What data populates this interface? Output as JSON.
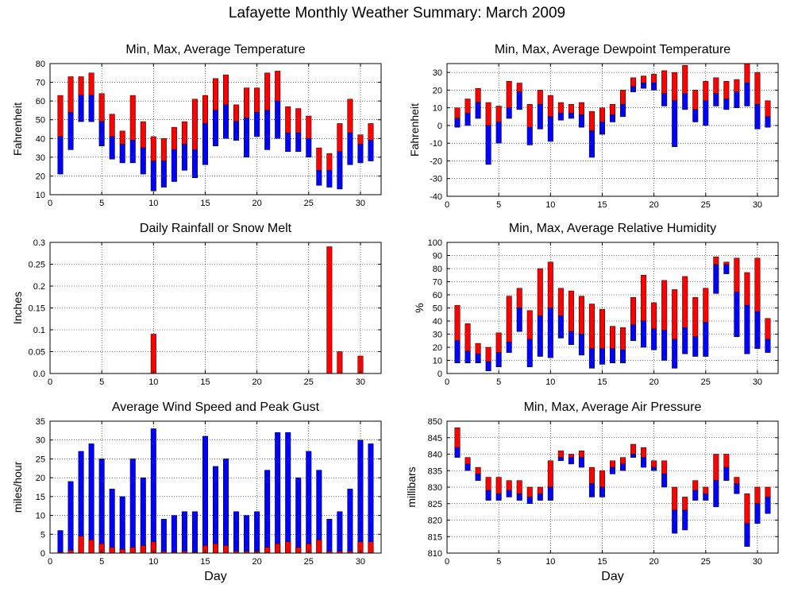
{
  "page": {
    "title": "Lafayette Monthly Weather Summary: March 2009"
  },
  "colors": {
    "max_bar": "#ff0000",
    "min_bar": "#0000ff",
    "grid": "#000000"
  },
  "chart_data": [
    {
      "id": "temperature",
      "type": "bar",
      "bar_style": "floating-range",
      "title": "Min, Max, Average Temperature",
      "xlabel": "",
      "ylabel": "Fahrenheit",
      "xlim": [
        0,
        32
      ],
      "ylim": [
        10,
        80
      ],
      "xticks": [
        0,
        5,
        10,
        15,
        20,
        25,
        30
      ],
      "yticks": [
        10,
        20,
        30,
        40,
        50,
        60,
        70,
        80
      ],
      "grid": true,
      "x": [
        1,
        2,
        3,
        4,
        5,
        6,
        7,
        8,
        9,
        10,
        11,
        12,
        13,
        14,
        15,
        16,
        17,
        18,
        19,
        20,
        21,
        22,
        23,
        24,
        25,
        26,
        27,
        28,
        29,
        30,
        31
      ],
      "min": [
        21,
        34,
        49,
        49,
        36,
        29,
        27,
        27,
        21,
        12,
        14,
        17,
        23,
        19,
        26,
        36,
        40,
        39,
        30,
        41,
        34,
        40,
        33,
        33,
        30,
        15,
        14,
        13,
        26,
        27,
        28
      ],
      "avg": [
        41,
        54,
        63,
        63,
        49,
        41,
        37,
        39,
        35,
        28,
        28,
        34,
        37,
        34,
        48,
        55,
        58,
        49,
        51,
        54,
        55,
        60,
        43,
        43,
        40,
        23,
        23,
        33,
        43,
        37,
        39
      ],
      "max": [
        63,
        73,
        73,
        75,
        64,
        53,
        44,
        63,
        49,
        41,
        40,
        46,
        49,
        61,
        63,
        72,
        74,
        58,
        67,
        67,
        75,
        76,
        57,
        56,
        52,
        35,
        32,
        48,
        61,
        42,
        48
      ]
    },
    {
      "id": "dewpoint",
      "type": "bar",
      "bar_style": "floating-range",
      "title": "Min, Max, Average Dewpoint Temperature",
      "xlabel": "",
      "ylabel": "Fahrenheit",
      "xlim": [
        0,
        32
      ],
      "ylim": [
        -40,
        35
      ],
      "xticks": [
        0,
        5,
        10,
        15,
        20,
        25,
        30
      ],
      "yticks": [
        -40,
        -30,
        -20,
        -10,
        0,
        10,
        20,
        30
      ],
      "grid": true,
      "x": [
        1,
        2,
        3,
        4,
        5,
        6,
        7,
        8,
        9,
        10,
        11,
        12,
        13,
        14,
        15,
        16,
        17,
        18,
        19,
        20,
        21,
        22,
        23,
        24,
        25,
        26,
        27,
        28,
        29,
        30,
        31
      ],
      "min": [
        -1,
        0,
        4,
        -22,
        -10,
        4,
        9,
        -11,
        -2,
        -9,
        3,
        4,
        -1,
        -18,
        -5,
        2,
        5,
        19,
        21,
        20,
        11,
        -12,
        9,
        2,
        0,
        11,
        9,
        10,
        11,
        -2,
        -1
      ],
      "avg": [
        4,
        7,
        13,
        0,
        2,
        10,
        19,
        -1,
        12,
        5,
        7,
        7,
        6,
        -3,
        2,
        6,
        12,
        22,
        24,
        24,
        18,
        14,
        18,
        9,
        14,
        18,
        15,
        19,
        24,
        12,
        5
      ],
      "max": [
        10,
        15,
        21,
        13,
        11,
        25,
        24,
        12,
        20,
        17,
        13,
        12,
        13,
        8,
        10,
        12,
        20,
        27,
        28,
        29,
        31,
        30,
        34,
        20,
        25,
        27,
        25,
        26,
        35,
        30,
        14
      ]
    },
    {
      "id": "rainfall",
      "type": "bar",
      "bar_style": "single",
      "title": "Daily Rainfall or Snow Melt",
      "xlabel": "",
      "ylabel": "Inches",
      "xlim": [
        0,
        32
      ],
      "ylim": [
        0,
        0.3
      ],
      "xticks": [
        0,
        5,
        10,
        15,
        20,
        25,
        30
      ],
      "yticks": [
        0.0,
        0.05,
        0.1,
        0.15,
        0.2,
        0.25,
        0.3
      ],
      "ytick_labels": [
        "0.0",
        "0.05",
        "0.1",
        "0.15",
        "0.2",
        "0.25",
        "0.3"
      ],
      "grid": true,
      "x": [
        1,
        2,
        3,
        4,
        5,
        6,
        7,
        8,
        9,
        10,
        11,
        12,
        13,
        14,
        15,
        16,
        17,
        18,
        19,
        20,
        21,
        22,
        23,
        24,
        25,
        26,
        27,
        28,
        29,
        30,
        31
      ],
      "values": [
        0,
        0,
        0,
        0,
        0,
        0,
        0,
        0,
        0,
        0.09,
        0,
        0,
        0,
        0,
        0,
        0,
        0,
        0,
        0,
        0,
        0,
        0,
        0,
        0,
        0,
        0,
        0.29,
        0.05,
        0,
        0.04,
        0
      ]
    },
    {
      "id": "humidity",
      "type": "bar",
      "bar_style": "floating-range",
      "title": "Min, Max, Average Relative Humidity",
      "xlabel": "",
      "ylabel": "%",
      "xlim": [
        0,
        32
      ],
      "ylim": [
        0,
        100
      ],
      "xticks": [
        0,
        5,
        10,
        15,
        20,
        25,
        30
      ],
      "yticks": [
        0,
        10,
        20,
        30,
        40,
        50,
        60,
        70,
        80,
        90,
        100
      ],
      "grid": true,
      "x": [
        1,
        2,
        3,
        4,
        5,
        6,
        7,
        8,
        9,
        10,
        11,
        12,
        13,
        14,
        15,
        16,
        17,
        18,
        19,
        20,
        21,
        22,
        23,
        24,
        25,
        26,
        27,
        28,
        29,
        30,
        31
      ],
      "min": [
        8,
        8,
        8,
        2,
        5,
        16,
        32,
        5,
        13,
        12,
        27,
        22,
        14,
        4,
        7,
        8,
        8,
        25,
        20,
        18,
        10,
        4,
        15,
        13,
        13,
        61,
        76,
        28,
        15,
        19,
        16
      ],
      "avg": [
        25,
        17,
        15,
        9,
        16,
        24,
        50,
        26,
        44,
        50,
        44,
        32,
        30,
        19,
        19,
        19,
        18,
        37,
        40,
        34,
        33,
        26,
        35,
        28,
        39,
        83,
        83,
        62,
        52,
        47,
        26
      ],
      "max": [
        52,
        38,
        23,
        20,
        31,
        59,
        65,
        48,
        80,
        85,
        65,
        63,
        59,
        53,
        49,
        36,
        35,
        58,
        75,
        54,
        71,
        64,
        74,
        58,
        65,
        89,
        85,
        88,
        77,
        88,
        42
      ]
    },
    {
      "id": "wind",
      "type": "bar",
      "bar_style": "overlay",
      "title": "Average Wind Speed and Peak Gust",
      "xlabel": "Day",
      "ylabel": "miles/hour",
      "xlim": [
        0,
        32
      ],
      "ylim": [
        0,
        35
      ],
      "xticks": [
        0,
        5,
        10,
        15,
        20,
        25,
        30
      ],
      "yticks": [
        0,
        5,
        10,
        15,
        20,
        25,
        30,
        35
      ],
      "grid": true,
      "x": [
        1,
        2,
        3,
        4,
        5,
        6,
        7,
        8,
        9,
        10,
        11,
        12,
        13,
        14,
        15,
        16,
        17,
        18,
        19,
        20,
        21,
        22,
        23,
        24,
        25,
        26,
        27,
        28,
        29,
        30,
        31
      ],
      "series": [
        {
          "role": "peak_gust",
          "values": [
            6,
            19,
            27,
            29,
            25,
            17,
            15,
            25,
            20,
            33,
            9,
            10,
            11,
            11,
            31,
            23,
            25,
            11,
            10,
            11,
            22,
            32,
            32,
            20,
            27,
            22,
            9,
            11,
            17,
            30,
            29
          ]
        },
        {
          "role": "average",
          "values": [
            0.3,
            0.7,
            4.5,
            3.5,
            2.5,
            1.5,
            1,
            1.5,
            2,
            3,
            0.5,
            0.3,
            0.5,
            0.3,
            2,
            2.5,
            2,
            0.5,
            0.5,
            0.5,
            1.5,
            2.5,
            3,
            1.5,
            2.5,
            3.5,
            0.5,
            0.5,
            0.5,
            3,
            3
          ]
        }
      ]
    },
    {
      "id": "pressure",
      "type": "bar",
      "bar_style": "floating-range",
      "title": "Min, Max, Average Air Pressure",
      "xlabel": "Day",
      "ylabel": "millibars",
      "xlim": [
        0,
        32
      ],
      "ylim": [
        810,
        850
      ],
      "xticks": [
        0,
        5,
        10,
        15,
        20,
        25,
        30
      ],
      "yticks": [
        810,
        815,
        820,
        825,
        830,
        835,
        840,
        845,
        850
      ],
      "grid": true,
      "x": [
        1,
        2,
        3,
        4,
        5,
        6,
        7,
        8,
        9,
        10,
        11,
        12,
        13,
        14,
        15,
        16,
        17,
        18,
        19,
        20,
        21,
        22,
        23,
        24,
        25,
        26,
        27,
        28,
        29,
        30,
        31
      ],
      "min": [
        839,
        835,
        832,
        826,
        826,
        827,
        826,
        825,
        826,
        826,
        838,
        837,
        836,
        827,
        827,
        834,
        835,
        839,
        836,
        835,
        830,
        816,
        817,
        826,
        826,
        824,
        832,
        828,
        812,
        819,
        822
      ],
      "avg": [
        842,
        837,
        834,
        829,
        828,
        829,
        828,
        827,
        828,
        830,
        839,
        839,
        839,
        831,
        830,
        836,
        837,
        840,
        839,
        836,
        834,
        823,
        823,
        829,
        828,
        832,
        836,
        831,
        819,
        825,
        827
      ],
      "max": [
        848,
        839,
        836,
        833,
        833,
        832,
        832,
        830,
        830,
        838,
        841,
        840,
        841,
        836,
        835,
        838,
        839,
        843,
        842,
        838,
        838,
        830,
        827,
        832,
        830,
        840,
        840,
        833,
        828,
        830,
        830
      ]
    }
  ]
}
